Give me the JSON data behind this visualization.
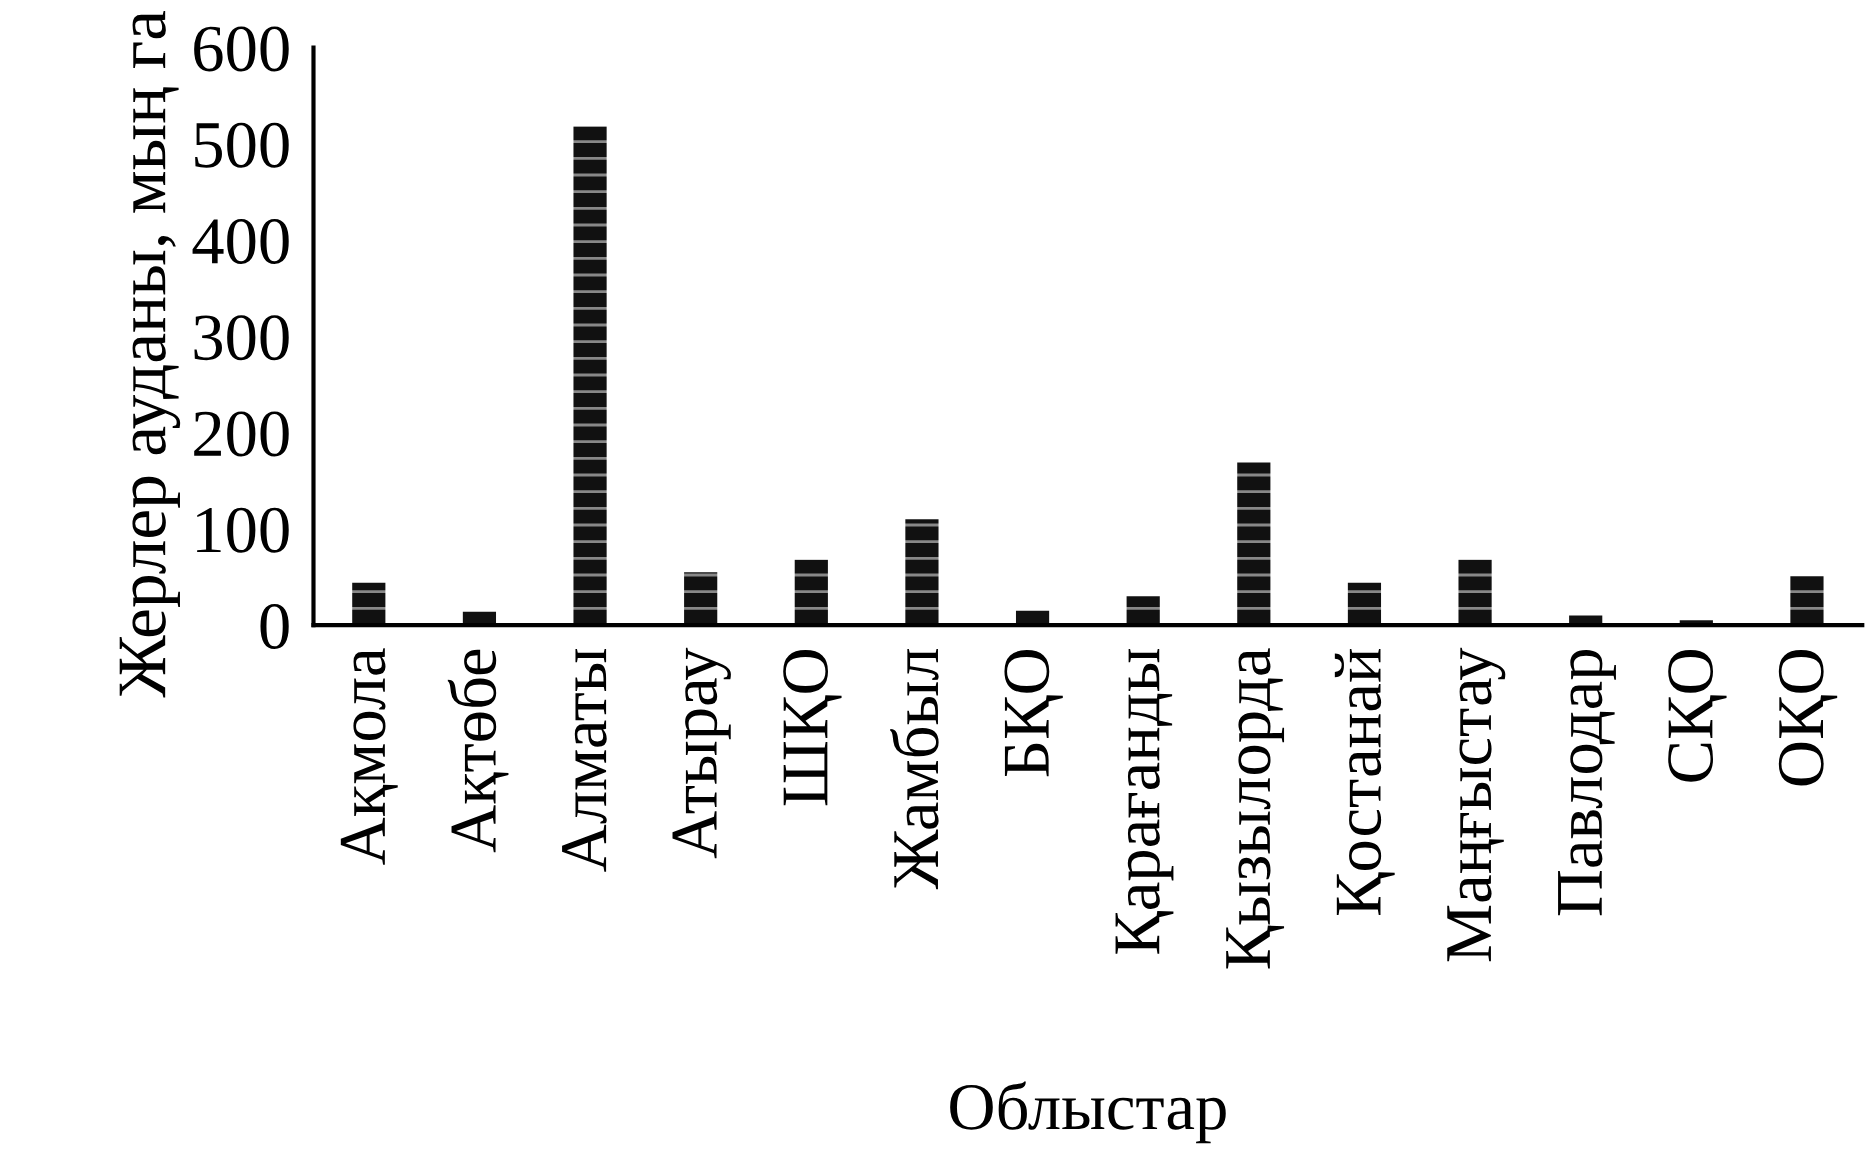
{
  "chart_data": {
    "type": "bar",
    "xlabel": "Облыстар",
    "ylabel": "Жерлер ауданы, мың га",
    "categories": [
      "Ақмола",
      "Ақтөбе",
      "Алматы",
      "Атырау",
      "ШҚО",
      "Жамбыл",
      "БҚО",
      "Қарағанды",
      "Қызылорда",
      "Қостанай",
      "Маңғыстау",
      "Павлодар",
      "СҚО",
      "ОҚО"
    ],
    "values": [
      44,
      14,
      518,
      55,
      68,
      110,
      15,
      30,
      169,
      44,
      68,
      10,
      5,
      51
    ],
    "color": "#111111",
    "ylim": [
      0,
      600
    ],
    "yticks": [
      0,
      100,
      200,
      300,
      400,
      500,
      600
    ],
    "grid": false
  }
}
